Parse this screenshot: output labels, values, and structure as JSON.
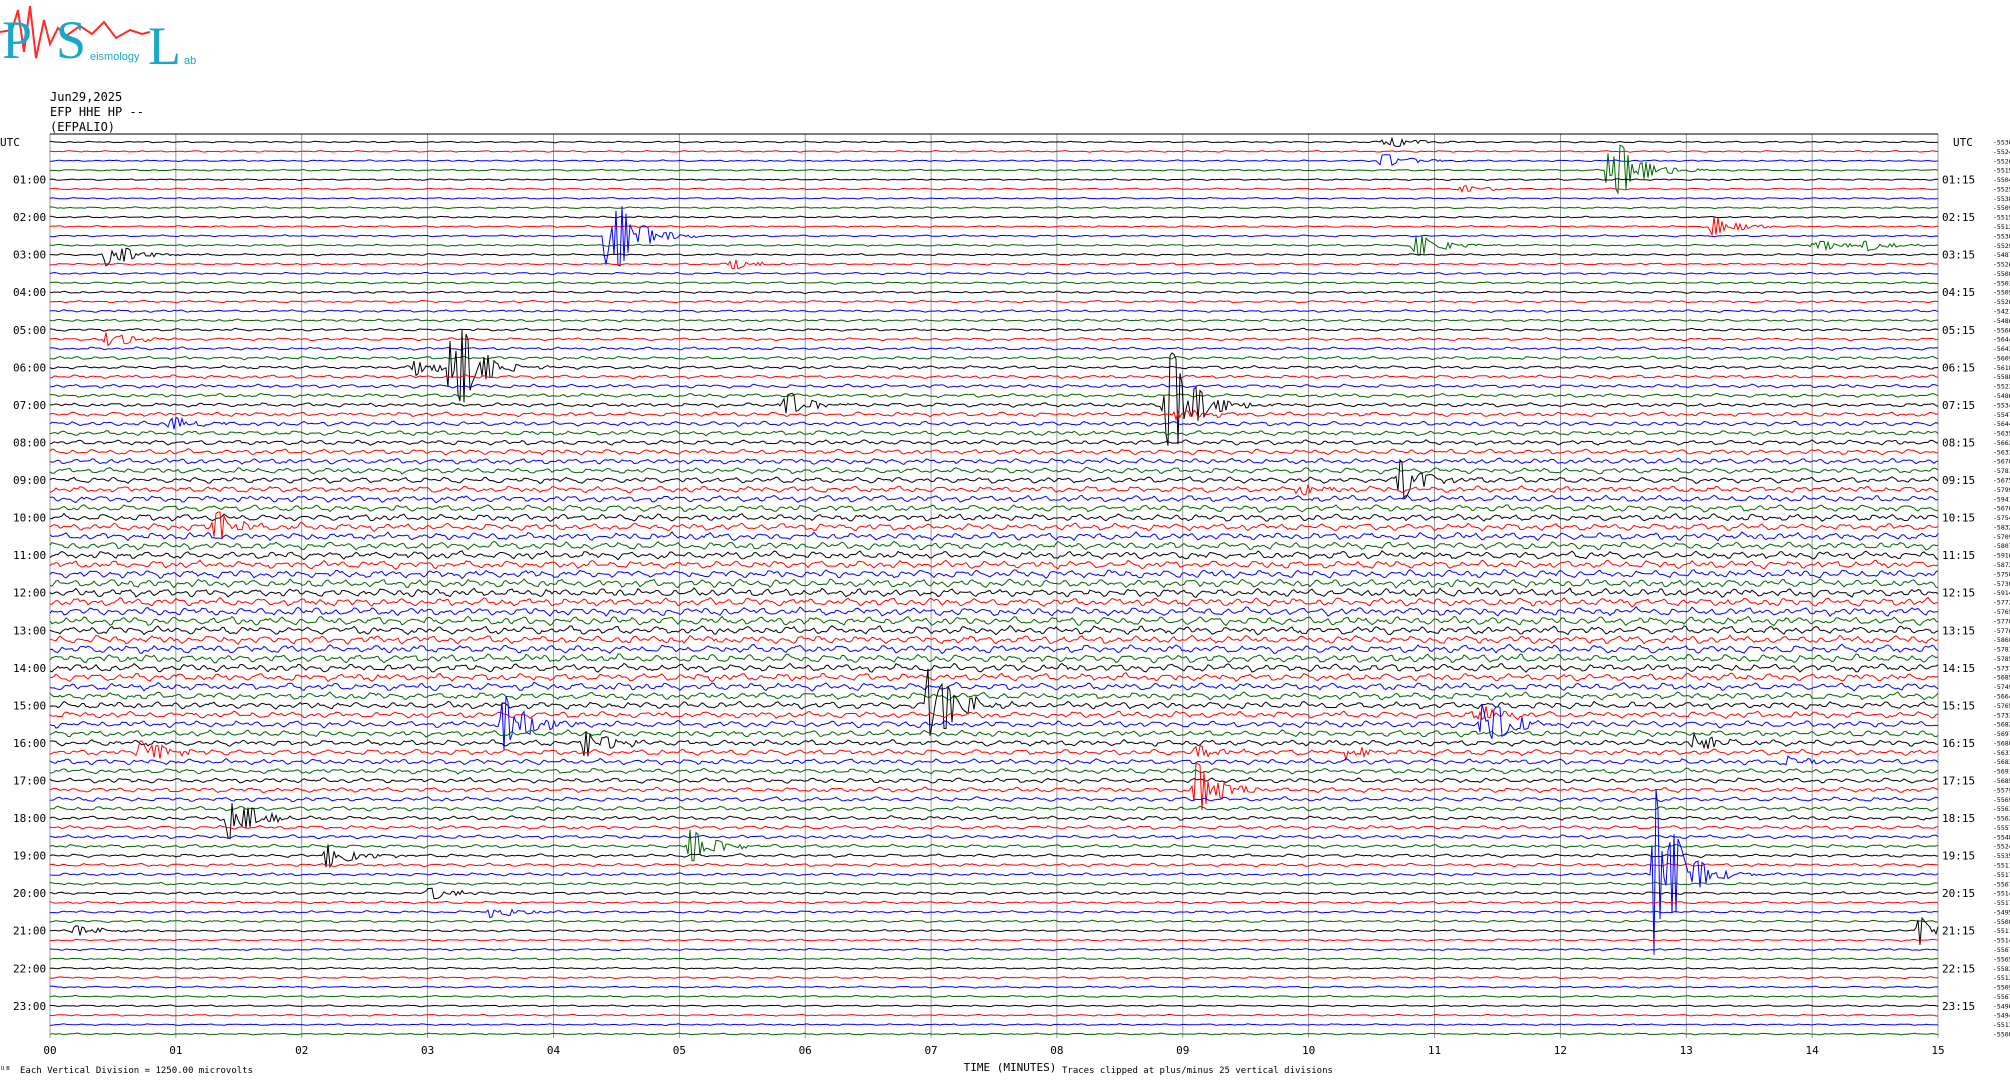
{
  "logo": {
    "text": "PSL",
    "subtitle": "eismology",
    "tail": "ab"
  },
  "header": {
    "date": "Jun29,2025",
    "channel": "EFP HHE HP --",
    "station": "(EFPALIO)"
  },
  "footer": {
    "left_mark": "ᵁᴮ",
    "scale_note": "Each Vertical Division = 1250.00 microvolts",
    "xlabel": "TIME (MINUTES)",
    "clip_note": "Traces clipped at plus/minus 25 vertical divisions"
  },
  "colors": {
    "black": "#000000",
    "red": "#ff0000",
    "blue": "#0000ff",
    "green": "#006400",
    "grid": "#7f7f7f"
  },
  "chart_data": {
    "type": "line",
    "title": "",
    "xlabel": "TIME (MINUTES)",
    "ylabel_left": "UTC",
    "ylabel_right": "UTC",
    "xlim": [
      0,
      15
    ],
    "x_ticks": [
      "00",
      "01",
      "02",
      "03",
      "04",
      "05",
      "06",
      "07",
      "08",
      "09",
      "10",
      "11",
      "12",
      "13",
      "14",
      "15"
    ],
    "left_hour_labels": [
      "01:00",
      "02:00",
      "03:00",
      "04:00",
      "05:00",
      "06:00",
      "07:00",
      "08:00",
      "09:00",
      "10:00",
      "11:00",
      "12:00",
      "13:00",
      "14:00",
      "15:00",
      "16:00",
      "17:00",
      "18:00",
      "19:00",
      "20:00",
      "21:00",
      "22:00",
      "23:00"
    ],
    "right_hour_labels": [
      "01:15",
      "02:15",
      "03:15",
      "04:15",
      "05:15",
      "06:15",
      "07:15",
      "08:15",
      "09:15",
      "10:15",
      "11:15",
      "12:15",
      "13:15",
      "14:15",
      "15:15",
      "16:15",
      "17:15",
      "18:15",
      "19:15",
      "20:15",
      "21:15",
      "22:15",
      "23:15"
    ],
    "trace_color_cycle": [
      "black",
      "red",
      "blue",
      "green"
    ],
    "trace_count": 96,
    "trace_offsets": [
      "-5536",
      "-5524",
      "-5526",
      "-5515",
      "-5504",
      "-5525",
      "-5538",
      "-5509",
      "-5515",
      "-5512",
      "-5530",
      "-5529",
      "-5487",
      "-5526",
      "-5508",
      "-5503",
      "-5505",
      "-5526",
      "-5421",
      "-5486",
      "-5566",
      "-5644",
      "-5642",
      "-5609",
      "-5618",
      "-5588",
      "-5523",
      "-5486",
      "-5534",
      "-5547",
      "-5644",
      "-5635",
      "-5662",
      "-5633",
      "-5670",
      "-5781",
      "-5675",
      "-5799",
      "-5941",
      "-5676",
      "-5754",
      "-5832",
      "-5709",
      "-5807",
      "-5916",
      "-5872",
      "-5750",
      "-5730",
      "-5914",
      "-5772",
      "-5765",
      "-5770",
      "-5776",
      "-5860",
      "-5781",
      "-5785",
      "-5737",
      "-5685",
      "-5749",
      "-5664",
      "-5765",
      "-5733",
      "-5682",
      "-5697",
      "-5680",
      "-5631",
      "-5683",
      "-5691",
      "-5685",
      "-5579",
      "-5569",
      "-5563",
      "-5562",
      "-5557",
      "-5548",
      "-5524",
      "-5535",
      "-5511",
      "-5517",
      "-5567",
      "-5514",
      "-5517",
      "-5495",
      "-5508",
      "-5511",
      "-5514",
      "-5567",
      "-5565",
      "-5582",
      "-5512",
      "-5509",
      "-5567",
      "-5490",
      "-5494",
      "-5513",
      "-5508"
    ],
    "events": [
      {
        "trace": 0,
        "minute": 10.6,
        "amp": 0.9
      },
      {
        "trace": 2,
        "minute": 10.55,
        "amp": 1.2
      },
      {
        "trace": 3,
        "minute": 12.38,
        "amp": 5.5
      },
      {
        "trace": 5,
        "minute": 11.2,
        "amp": 0.5
      },
      {
        "trace": 9,
        "minute": 13.2,
        "amp": 1.3
      },
      {
        "trace": 10,
        "minute": 4.42,
        "amp": 7.0
      },
      {
        "trace": 11,
        "minute": 10.82,
        "amp": 1.8
      },
      {
        "trace": 11,
        "minute": 14.0,
        "amp": 0.9
      },
      {
        "trace": 11,
        "minute": 14.38,
        "amp": 0.9
      },
      {
        "trace": 12,
        "minute": 0.45,
        "amp": 1.8
      },
      {
        "trace": 13,
        "minute": 5.4,
        "amp": 0.7
      },
      {
        "trace": 21,
        "minute": 0.45,
        "amp": 1.1
      },
      {
        "trace": 24,
        "minute": 2.9,
        "amp": 1.0
      },
      {
        "trace": 24,
        "minute": 3.18,
        "amp": 8.0
      },
      {
        "trace": 28,
        "minute": 5.8,
        "amp": 2.0
      },
      {
        "trace": 28,
        "minute": 8.85,
        "amp": 9.5
      },
      {
        "trace": 29,
        "minute": 8.95,
        "amp": 0.8
      },
      {
        "trace": 30,
        "minute": 0.95,
        "amp": 0.9
      },
      {
        "trace": 36,
        "minute": 10.72,
        "amp": 2.5
      },
      {
        "trace": 37,
        "minute": 9.9,
        "amp": 0.9
      },
      {
        "trace": 41,
        "minute": 1.3,
        "amp": 2.2
      },
      {
        "trace": 60,
        "minute": 6.98,
        "amp": 6.0
      },
      {
        "trace": 61,
        "minute": 11.3,
        "amp": 1.2
      },
      {
        "trace": 62,
        "minute": 3.6,
        "amp": 3.5
      },
      {
        "trace": 62,
        "minute": 11.38,
        "amp": 4.0
      },
      {
        "trace": 64,
        "minute": 4.25,
        "amp": 1.8
      },
      {
        "trace": 64,
        "minute": 13.05,
        "amp": 1.2
      },
      {
        "trace": 65,
        "minute": 0.72,
        "amp": 2.0
      },
      {
        "trace": 65,
        "minute": 9.1,
        "amp": 0.7
      },
      {
        "trace": 65,
        "minute": 10.3,
        "amp": 0.9
      },
      {
        "trace": 66,
        "minute": 13.8,
        "amp": 0.6
      },
      {
        "trace": 69,
        "minute": 9.1,
        "amp": 3.5
      },
      {
        "trace": 72,
        "minute": 1.42,
        "amp": 3.0
      },
      {
        "trace": 75,
        "minute": 5.08,
        "amp": 2.2
      },
      {
        "trace": 76,
        "minute": 2.2,
        "amp": 1.6
      },
      {
        "trace": 78,
        "minute": 12.75,
        "amp": 12.0
      },
      {
        "trace": 80,
        "minute": 3.0,
        "amp": 0.8
      },
      {
        "trace": 82,
        "minute": 3.5,
        "amp": 0.8
      },
      {
        "trace": 84,
        "minute": 14.85,
        "amp": 1.8
      },
      {
        "trace": 84,
        "minute": 0.2,
        "amp": 0.7
      }
    ]
  }
}
